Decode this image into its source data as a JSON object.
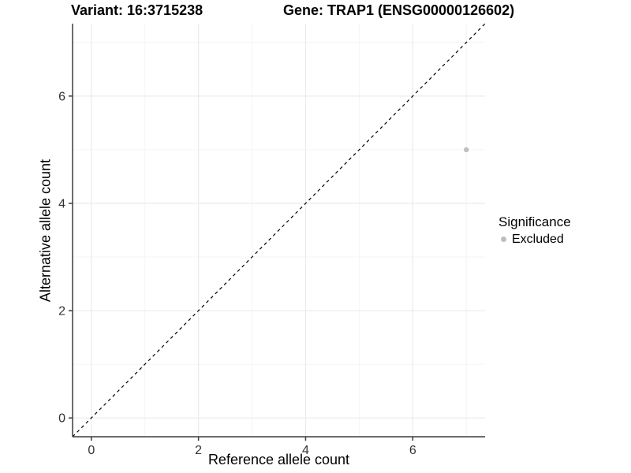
{
  "chart_data": {
    "type": "scatter",
    "titles": {
      "left": "Variant: 16:3715238",
      "right": "Gene: TRAP1 (ENSG00000126602)"
    },
    "xlabel": "Reference allele count",
    "ylabel": "Alternative allele count",
    "xlim": [
      -0.35,
      7.35
    ],
    "ylim": [
      -0.35,
      7.35
    ],
    "x_ticks": [
      0,
      2,
      4,
      6
    ],
    "y_ticks": [
      0,
      2,
      4,
      6
    ],
    "x_minor_ticks": [
      1,
      3,
      5,
      7
    ],
    "y_minor_ticks": [
      1,
      3,
      5,
      7
    ],
    "grid": true,
    "series": [
      {
        "name": "Excluded",
        "color": "#bebebe",
        "point_radius": 3.2,
        "points": [
          {
            "x": 7,
            "y": 5
          }
        ]
      }
    ],
    "reference_line": {
      "kind": "identity",
      "slope": 1,
      "intercept": 0,
      "style": "dashed",
      "color": "#000000"
    },
    "legend": {
      "title": "Significance",
      "position": "right",
      "entries": [
        {
          "label": "Excluded",
          "color": "#bebebe"
        }
      ]
    },
    "colors": {
      "background": "#ffffff",
      "grid_major": "#ebebeb",
      "grid_minor": "#f4f4f4",
      "axis_line": "#3d3d3d",
      "tick_label": "#333333",
      "text": "#000000"
    }
  }
}
